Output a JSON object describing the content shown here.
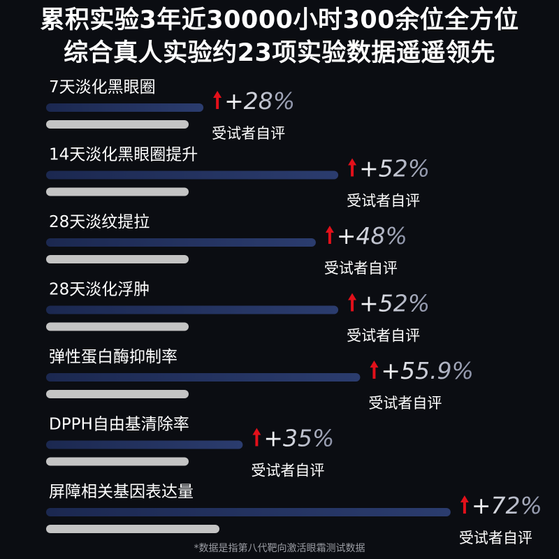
{
  "header": {
    "line1": "累积实验3年近30000小时300余位全方位",
    "line2": "综合真人实验约23项实验数据遥遥领先"
  },
  "chart_data": {
    "type": "bar",
    "categories": [
      "7天淡化黑眼圈",
      "14天淡化黑眼圈提升",
      "28天淡纹提拉",
      "28天淡化浮肿",
      "弹性蛋白酶抑制率",
      "DPPH自由基清除率",
      "屏障相关基因表达量"
    ],
    "series": [
      {
        "values": [
          28,
          52,
          48,
          52,
          55.9,
          35,
          72
        ]
      }
    ],
    "value_labels": [
      "+28%",
      "+52%",
      "+48%",
      "+52%",
      "+55.9%",
      "+35%",
      "+72%"
    ],
    "note_label": "受试者自评",
    "unit": "%",
    "colors": {
      "bar": "#1b2a55",
      "bar_light": "#2b3c6e",
      "baseline": "#c4c4c4",
      "arrow": "#e2101a",
      "label": "#ffffff"
    }
  },
  "footnote": "*数据是指第八代靶向激活眼霜测试数据"
}
